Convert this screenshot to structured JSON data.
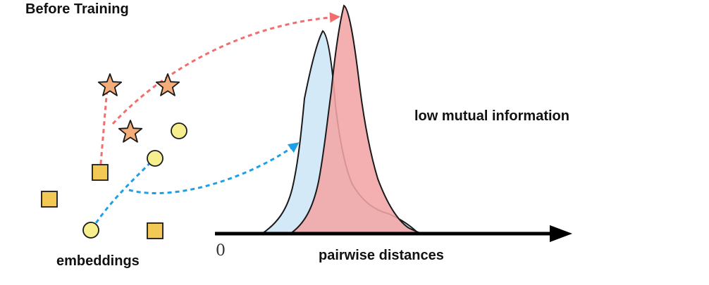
{
  "title": "Before Training",
  "embeddings_label": "embeddings",
  "axis_label": "pairwise distances",
  "axis_origin": "0",
  "annotation": "low mutual information",
  "colors": {
    "blue_distribution_fill": "#d4e9f7",
    "red_distribution_fill": "#f2a5a5",
    "blue_arrow": "#1ea0e8",
    "red_arrow": "#f26d6d",
    "star_fill": "#f4ad78",
    "square_fill": "#f2c955",
    "circle_fill": "#f7ef8e",
    "outline": "#1a1a1a"
  },
  "icons": [
    "star-icon",
    "square-icon",
    "circle-icon",
    "axis-arrow-icon"
  ]
}
